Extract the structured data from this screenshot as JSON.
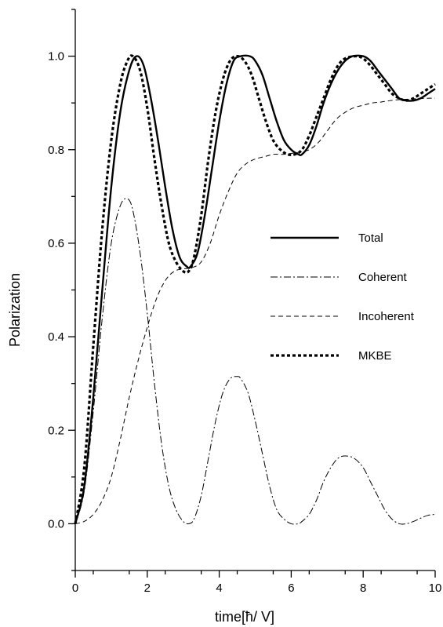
{
  "chart_data": {
    "type": "line",
    "title": "",
    "xlabel": "time[ħ/ V]",
    "ylabel": "Polarization",
    "xlim": [
      0,
      10
    ],
    "ylim": [
      -0.1,
      1.1
    ],
    "xticks": [
      0,
      2,
      4,
      6,
      8,
      10
    ],
    "xtick_labels": [
      "0",
      "2",
      "4",
      "6",
      "8",
      "10"
    ],
    "yticks": [
      0.0,
      0.2,
      0.4,
      0.6,
      0.8,
      1.0
    ],
    "ytick_labels": [
      "0.0",
      "0.2",
      "0.4",
      "0.6",
      "0.8",
      "1.0"
    ],
    "grid": false,
    "legend_position": "right-middle",
    "series": [
      {
        "name": "Total",
        "style": "solid-thick",
        "color": "#000000",
        "x": [
          0,
          0.25,
          0.5,
          0.75,
          1.0,
          1.25,
          1.5,
          1.7,
          1.9,
          2.1,
          2.3,
          2.5,
          2.7,
          2.9,
          3.1,
          3.2,
          3.4,
          3.6,
          3.8,
          4.0,
          4.2,
          4.4,
          4.6,
          4.85,
          5.0,
          5.2,
          5.4,
          5.6,
          5.8,
          6.0,
          6.2,
          6.3,
          6.5,
          6.7,
          6.9,
          7.1,
          7.3,
          7.5,
          7.7,
          8.0,
          8.2,
          8.4,
          8.6,
          8.8,
          9.0,
          9.2,
          9.4,
          9.6,
          9.8,
          10.0
        ],
        "y": [
          0.0,
          0.08,
          0.27,
          0.5,
          0.72,
          0.88,
          0.97,
          1.0,
          0.98,
          0.91,
          0.82,
          0.72,
          0.63,
          0.57,
          0.55,
          0.55,
          0.58,
          0.66,
          0.76,
          0.86,
          0.94,
          0.99,
          1.0,
          1.0,
          0.99,
          0.96,
          0.91,
          0.86,
          0.82,
          0.8,
          0.79,
          0.79,
          0.81,
          0.85,
          0.9,
          0.94,
          0.97,
          0.99,
          1.0,
          1.0,
          0.99,
          0.97,
          0.95,
          0.93,
          0.91,
          0.905,
          0.905,
          0.91,
          0.92,
          0.93
        ]
      },
      {
        "name": "Coherent",
        "style": "dash-dot",
        "color": "#000000",
        "x": [
          0,
          0.25,
          0.5,
          0.75,
          1.0,
          1.25,
          1.45,
          1.6,
          1.8,
          2.0,
          2.2,
          2.4,
          2.6,
          2.8,
          3.0,
          3.15,
          3.3,
          3.5,
          3.7,
          3.9,
          4.1,
          4.3,
          4.5,
          4.6,
          4.8,
          5.0,
          5.2,
          5.4,
          5.6,
          5.8,
          6.0,
          6.2,
          6.3,
          6.5,
          6.7,
          6.9,
          7.1,
          7.3,
          7.5,
          7.75,
          8.0,
          8.2,
          8.4,
          8.6,
          8.8,
          9.0,
          9.2,
          9.4,
          9.6,
          9.8,
          10.0
        ],
        "y": [
          0.0,
          0.07,
          0.24,
          0.44,
          0.6,
          0.68,
          0.695,
          0.67,
          0.58,
          0.45,
          0.3,
          0.17,
          0.08,
          0.03,
          0.005,
          0.0,
          0.01,
          0.06,
          0.14,
          0.22,
          0.28,
          0.31,
          0.315,
          0.31,
          0.28,
          0.22,
          0.15,
          0.08,
          0.03,
          0.01,
          0.0,
          0.0,
          0.005,
          0.02,
          0.05,
          0.09,
          0.12,
          0.14,
          0.145,
          0.14,
          0.12,
          0.09,
          0.06,
          0.03,
          0.01,
          0.0,
          0.0,
          0.005,
          0.012,
          0.018,
          0.02
        ]
      },
      {
        "name": "Incoherent",
        "style": "dashed-thin",
        "color": "#000000",
        "x": [
          0,
          0.25,
          0.5,
          0.75,
          1.0,
          1.25,
          1.5,
          1.75,
          2.0,
          2.25,
          2.5,
          2.75,
          3.0,
          3.25,
          3.5,
          3.75,
          4.0,
          4.25,
          4.5,
          4.75,
          5.0,
          5.25,
          5.5,
          5.75,
          6.0,
          6.25,
          6.5,
          6.75,
          7.0,
          7.25,
          7.5,
          7.75,
          8.0,
          8.25,
          8.5,
          8.75,
          9.0,
          9.25,
          9.5,
          9.75,
          10.0
        ],
        "y": [
          0.0,
          0.005,
          0.02,
          0.05,
          0.1,
          0.18,
          0.27,
          0.35,
          0.42,
          0.48,
          0.52,
          0.54,
          0.545,
          0.548,
          0.56,
          0.6,
          0.66,
          0.71,
          0.75,
          0.77,
          0.78,
          0.785,
          0.79,
          0.79,
          0.792,
          0.795,
          0.8,
          0.815,
          0.84,
          0.865,
          0.88,
          0.89,
          0.895,
          0.9,
          0.902,
          0.905,
          0.907,
          0.908,
          0.909,
          0.91,
          0.91
        ]
      },
      {
        "name": "MKBE",
        "style": "dotted-thick",
        "color": "#000000",
        "x": [
          0,
          0.25,
          0.5,
          0.75,
          1.0,
          1.25,
          1.45,
          1.6,
          1.8,
          2.0,
          2.2,
          2.4,
          2.6,
          2.8,
          3.0,
          3.15,
          3.3,
          3.5,
          3.7,
          3.9,
          4.1,
          4.3,
          4.5,
          4.7,
          4.9,
          5.1,
          5.3,
          5.5,
          5.7,
          5.9,
          6.1,
          6.3,
          6.5,
          6.7,
          6.9,
          7.1,
          7.3,
          7.5,
          7.8,
          8.0,
          8.2,
          8.4,
          8.6,
          8.8,
          9.0,
          9.2,
          9.4,
          9.6,
          9.8,
          10.0
        ],
        "y": [
          0.0,
          0.12,
          0.38,
          0.63,
          0.82,
          0.94,
          0.99,
          1.0,
          0.97,
          0.89,
          0.78,
          0.68,
          0.6,
          0.56,
          0.54,
          0.54,
          0.57,
          0.66,
          0.78,
          0.88,
          0.95,
          0.99,
          1.0,
          0.99,
          0.96,
          0.91,
          0.86,
          0.82,
          0.8,
          0.79,
          0.79,
          0.8,
          0.83,
          0.87,
          0.91,
          0.95,
          0.98,
          0.995,
          1.0,
          0.995,
          0.98,
          0.96,
          0.94,
          0.92,
          0.91,
          0.905,
          0.91,
          0.92,
          0.93,
          0.94
        ]
      }
    ]
  }
}
